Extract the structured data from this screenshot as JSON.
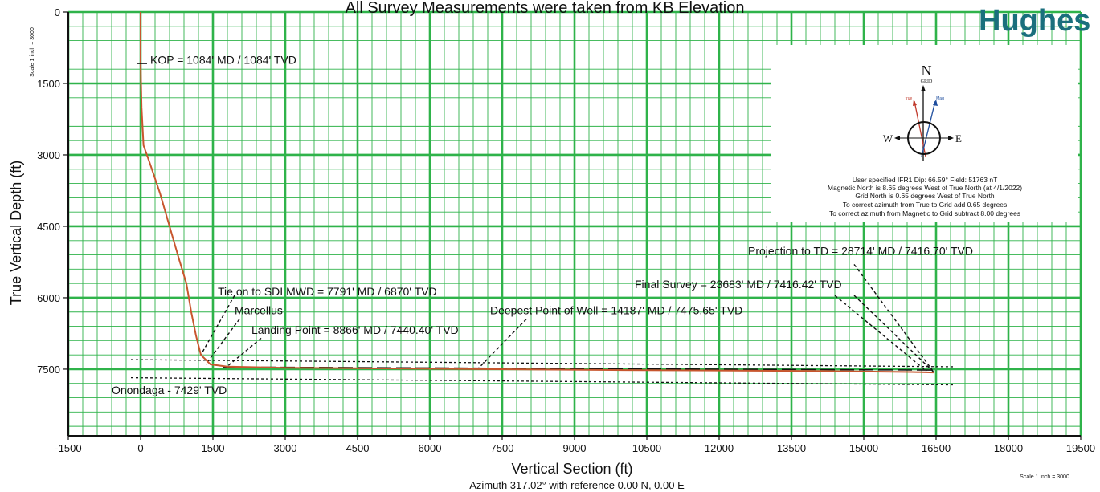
{
  "chart_data": {
    "type": "line",
    "title": "All Survey Measurements were taken from KB Elevation",
    "brand": "Hughes",
    "xlabel": "Vertical Section (ft)",
    "x_sublabel": "Azimuth 317.02° with reference 0.00 N, 0.00 E",
    "ylabel": "True Vertical Depth (ft)",
    "scale_label_left": "Scale 1 inch = 3000",
    "scale_label_right": "Scale 1 inch = 3000",
    "xlim": [
      -1500,
      19500
    ],
    "ylim": [
      0,
      8900
    ],
    "x_ticks": [
      -1500,
      0,
      1500,
      3000,
      4500,
      6000,
      7500,
      9000,
      10500,
      12000,
      13500,
      15000,
      16500,
      18000,
      19500
    ],
    "y_ticks": [
      0,
      1500,
      3000,
      4500,
      6000,
      7500
    ],
    "grid": true,
    "series": [
      {
        "color": "#c8562e",
        "points": [
          [
            0,
            0
          ],
          [
            0,
            1084
          ],
          [
            20,
            2000
          ],
          [
            60,
            2800
          ],
          [
            200,
            3200
          ],
          [
            400,
            3800
          ],
          [
            600,
            4500
          ],
          [
            800,
            5200
          ],
          [
            950,
            5700
          ],
          [
            1050,
            6300
          ],
          [
            1150,
            6800
          ],
          [
            1250,
            7200
          ],
          [
            1450,
            7400
          ],
          [
            1800,
            7445
          ],
          [
            3000,
            7470
          ],
          [
            6000,
            7490
          ],
          [
            10000,
            7520
          ],
          [
            14000,
            7540
          ],
          [
            16000,
            7560
          ],
          [
            16450,
            7570
          ]
        ]
      }
    ],
    "formation_lines": [
      {
        "label": "Marcellus",
        "y_start": 7300,
        "y_end": 7450
      },
      {
        "label": "Onondaga - 7429' TVD",
        "y_start": 7680,
        "y_end": 7830
      }
    ],
    "annotations": [
      {
        "text": "KOP = 1084' MD / 1084' TVD",
        "x": 200,
        "y": 1084
      },
      {
        "text": "Tie on to SDI MWD = 7791' MD / 6870' TVD",
        "x": 1600,
        "y": 5950
      },
      {
        "text": "Marcellus",
        "x": 1950,
        "y": 6350
      },
      {
        "text": "Landing Point = 8866' MD / 7440.40' TVD",
        "x": 2300,
        "y": 6760
      },
      {
        "text": "Deepest Point of Well = 14187' MD / 7475.65' TVD",
        "x": 7250,
        "y": 6350
      },
      {
        "text": "Final Survey = 23683' MD / 7416.42' TVD",
        "x": 10250,
        "y": 5800
      },
      {
        "text": "Projection to TD = 28714' MD / 7416.70' TVD",
        "x": 12600,
        "y": 5100
      },
      {
        "text": "Onondaga - 7429' TVD",
        "x": -600,
        "y": 8020
      }
    ],
    "info_box": {
      "north_label": "N",
      "grid_label": "GRID",
      "true_label": "true",
      "mag_label": "Mag",
      "west_label": "W",
      "east_label": "E",
      "lines": [
        "User specified IFR1 Dip: 66.59°  Field: 51763 nT",
        "Magnetic North is 8.65 degrees West of True North (at 4/1/2022)",
        "Grid North is 0.65 degrees West of True North",
        "To correct azimuth from True to Grid add 0.65 degrees",
        "To correct azimuth from Magnetic to Grid subtract 8.00 degrees"
      ]
    }
  }
}
